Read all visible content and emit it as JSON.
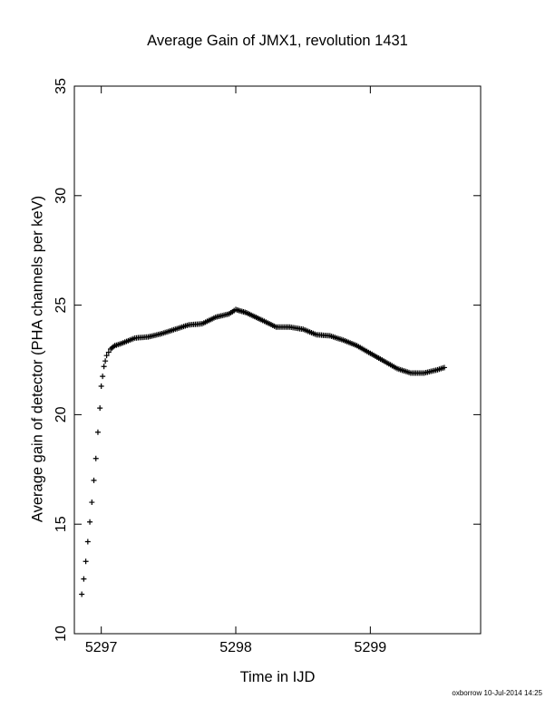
{
  "chart_data": {
    "type": "scatter",
    "title": "Average Gain of JMX1, revolution 1431",
    "xlabel": "Time in IJD",
    "ylabel": "Average gain of detector (PHA channels per keV)",
    "xlim": [
      5296.8,
      5299.82
    ],
    "ylim": [
      10,
      35
    ],
    "xticks": [
      5297,
      5298,
      5299
    ],
    "yticks": [
      10,
      15,
      20,
      25,
      30,
      35
    ],
    "marker": "+",
    "color": "#000000",
    "legend": "none",
    "grid": false,
    "points": [
      [
        5296.855,
        11.8
      ],
      [
        5296.87,
        12.5
      ],
      [
        5296.885,
        13.3
      ],
      [
        5296.9,
        14.2
      ],
      [
        5296.915,
        15.1
      ],
      [
        5296.93,
        16.0
      ],
      [
        5296.945,
        17.0
      ],
      [
        5296.96,
        18.0
      ],
      [
        5296.975,
        19.2
      ],
      [
        5296.99,
        20.3
      ],
      [
        5297.0,
        21.3
      ],
      [
        5297.02,
        22.2
      ],
      [
        5297.04,
        22.7
      ],
      [
        5297.07,
        23.0
      ],
      [
        5297.1,
        23.15
      ],
      [
        5297.15,
        23.25
      ],
      [
        5297.25,
        23.5
      ],
      [
        5297.35,
        23.55
      ],
      [
        5297.45,
        23.7
      ],
      [
        5297.55,
        23.9
      ],
      [
        5297.65,
        24.1
      ],
      [
        5297.75,
        24.15
      ],
      [
        5297.85,
        24.45
      ],
      [
        5297.95,
        24.6
      ],
      [
        5298.0,
        24.8
      ],
      [
        5298.08,
        24.65
      ],
      [
        5298.2,
        24.3
      ],
      [
        5298.3,
        24.0
      ],
      [
        5298.4,
        24.0
      ],
      [
        5298.5,
        23.9
      ],
      [
        5298.6,
        23.65
      ],
      [
        5298.7,
        23.6
      ],
      [
        5298.8,
        23.4
      ],
      [
        5298.9,
        23.15
      ],
      [
        5299.0,
        22.8
      ],
      [
        5299.1,
        22.45
      ],
      [
        5299.2,
        22.1
      ],
      [
        5299.3,
        21.9
      ],
      [
        5299.4,
        21.9
      ],
      [
        5299.5,
        22.05
      ],
      [
        5299.55,
        22.15
      ]
    ]
  },
  "footer": {
    "text": "oxborrow 10-Jul-2014 14:25"
  }
}
